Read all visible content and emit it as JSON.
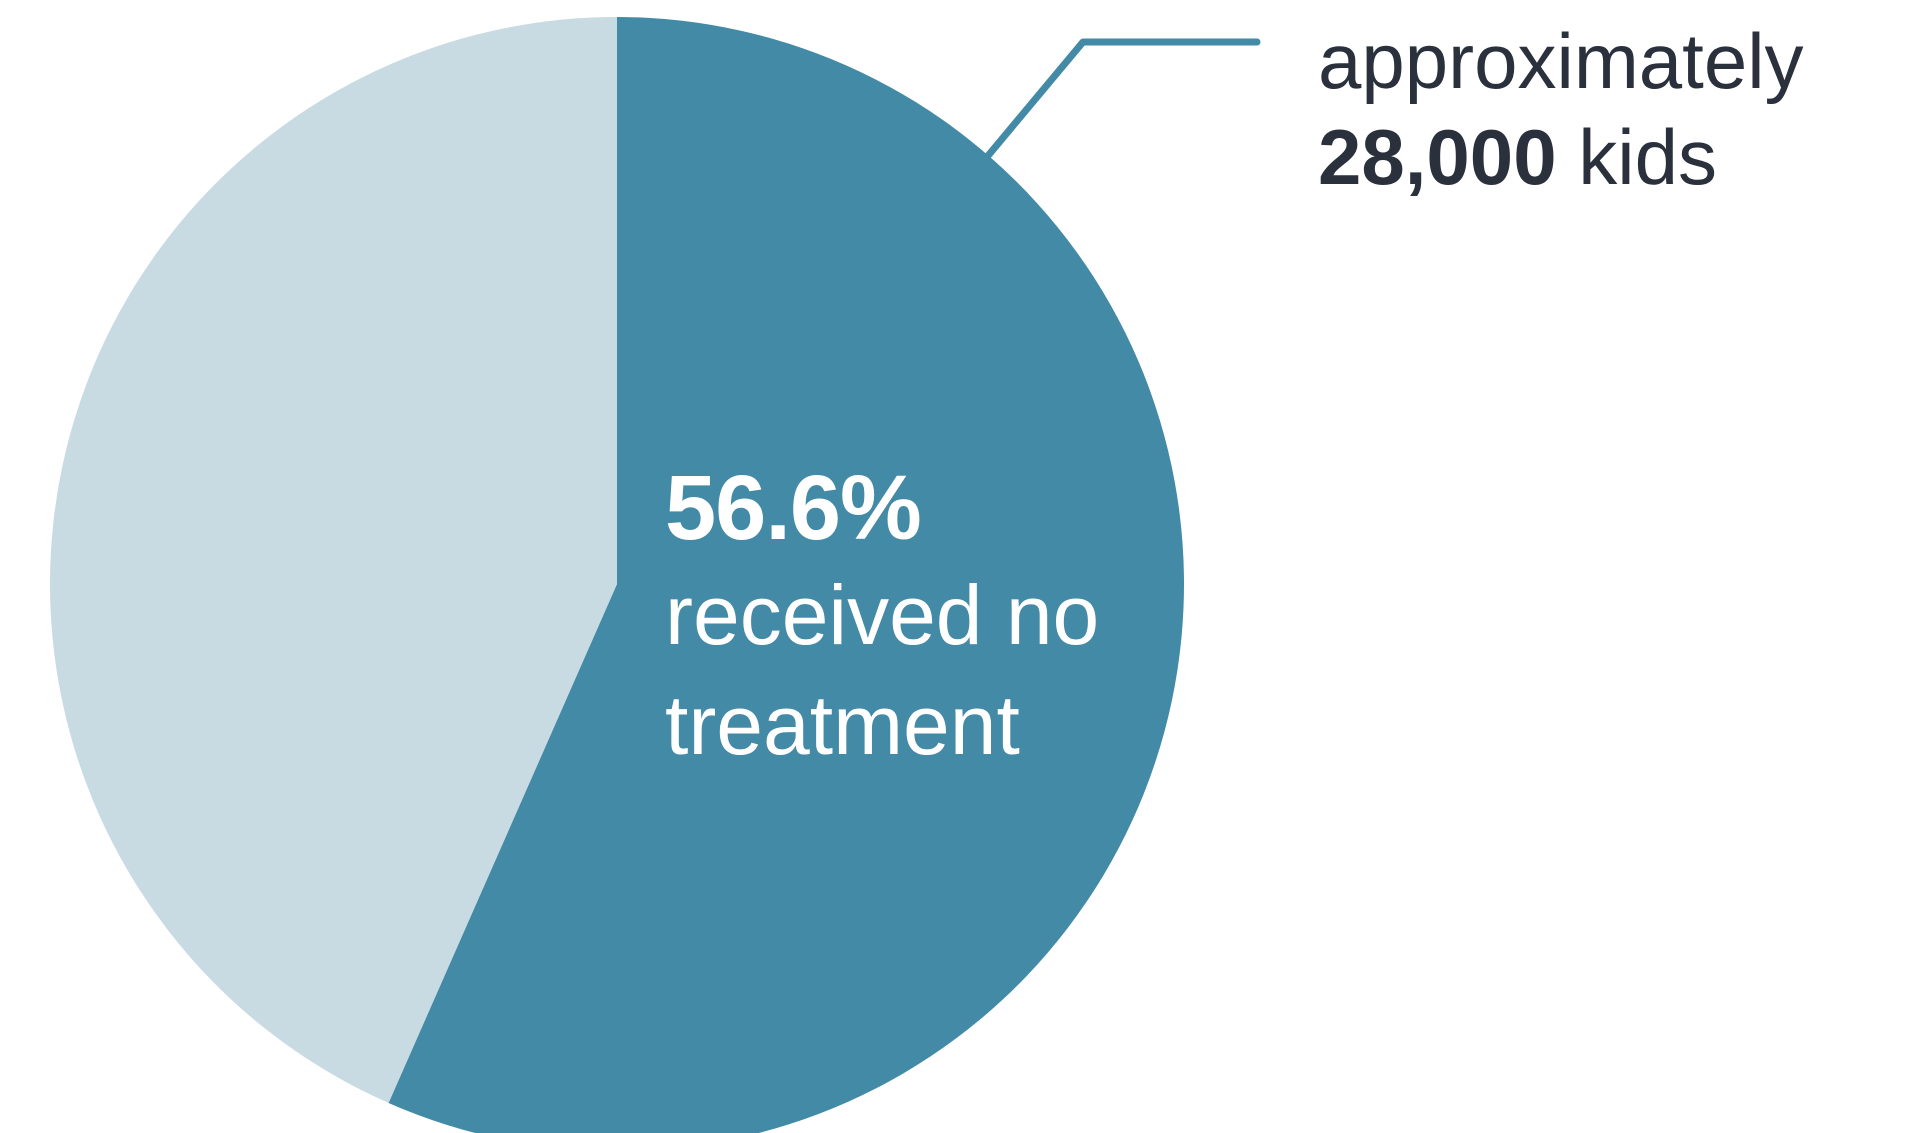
{
  "chart_data": {
    "type": "pie",
    "slices": [
      {
        "value": 56.6,
        "color": "#428aa6",
        "label": "56.6%",
        "description": "received no treatment"
      },
      {
        "value": 43.4,
        "color": "#c8dae2"
      }
    ],
    "start_angle_deg": 0,
    "direction": "clockwise",
    "callout": {
      "prefix": "approximately",
      "count": "28,000",
      "suffix": "kids",
      "line_color": "#428aa6"
    }
  }
}
